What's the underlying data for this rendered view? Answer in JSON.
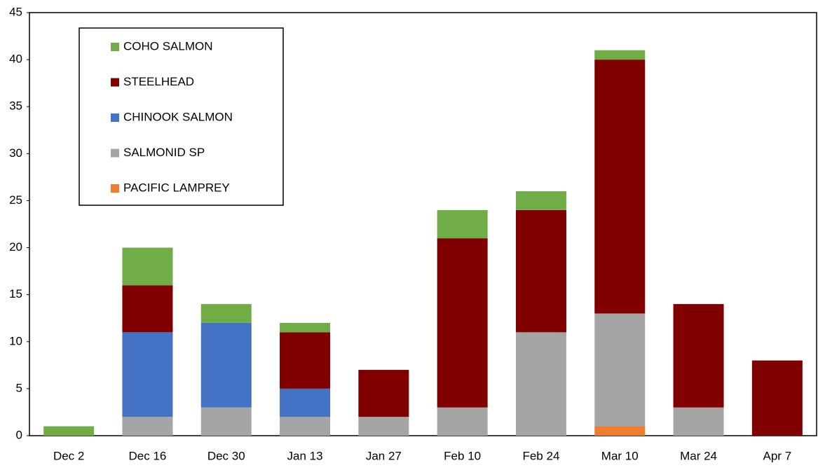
{
  "chart_data": {
    "type": "stacked_bar",
    "categories": [
      "Dec 2",
      "Dec 16",
      "Dec 30",
      "Jan 13",
      "Jan 27",
      "Feb 10",
      "Feb 24",
      "Mar 10",
      "Mar 24",
      "Apr 7"
    ],
    "series": [
      {
        "name": "COHO SALMON",
        "color": "#70ad47",
        "values": [
          1,
          4,
          2,
          1,
          0,
          3,
          2,
          1,
          0,
          0
        ]
      },
      {
        "name": "STEELHEAD",
        "color": "#800000",
        "values": [
          0,
          5,
          0,
          6,
          5,
          18,
          13,
          27,
          11,
          8
        ]
      },
      {
        "name": "CHINOOK SALMON",
        "color": "#4472c4",
        "values": [
          0,
          9,
          9,
          3,
          0,
          0,
          0,
          0,
          0,
          0
        ]
      },
      {
        "name": "SALMONID SP",
        "color": "#a5a5a5",
        "values": [
          0,
          2,
          3,
          2,
          2,
          3,
          11,
          12,
          3,
          0
        ]
      },
      {
        "name": "PACIFIC LAMPREY",
        "color": "#ed7d31",
        "values": [
          0,
          0,
          0,
          0,
          0,
          0,
          0,
          1,
          0,
          0
        ]
      }
    ],
    "ylim": [
      0,
      45
    ],
    "yticks": [
      0,
      5,
      10,
      15,
      20,
      25,
      30,
      35,
      40,
      45
    ],
    "legend": "top-left"
  }
}
